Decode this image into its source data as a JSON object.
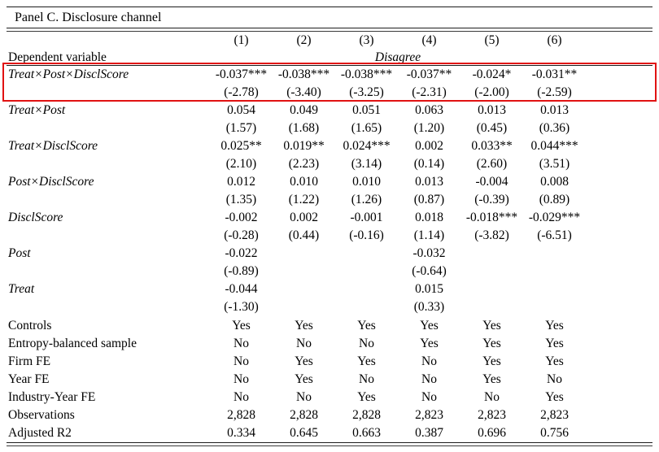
{
  "panel_title": "Panel C. Disclosure channel",
  "columns": [
    "(1)",
    "(2)",
    "(3)",
    "(4)",
    "(5)",
    "(6)"
  ],
  "dependent_variable": {
    "label": "Dependent variable",
    "value": "Disagree"
  },
  "highlight_color": "#e11212",
  "chart_data": {
    "type": "table",
    "title": "Panel C. Disclosure channel",
    "columns": [
      "(1)",
      "(2)",
      "(3)",
      "(4)",
      "(5)",
      "(6)"
    ],
    "dependent_variable": "Disagree"
  },
  "coefficient_rows": [
    {
      "label": "Treat×Post×DisclScore",
      "highlighted": true,
      "estimates": [
        "-0.037***",
        "-0.038***",
        "-0.038***",
        "-0.037**",
        "-0.024*",
        "-0.031**"
      ],
      "t_stats": [
        "(-2.78)",
        "(-3.40)",
        "(-3.25)",
        "(-2.31)",
        "(-2.00)",
        "(-2.59)"
      ]
    },
    {
      "label": "Treat×Post",
      "highlighted": false,
      "estimates": [
        "0.054",
        "0.049",
        "0.051",
        "0.063",
        "0.013",
        "0.013"
      ],
      "t_stats": [
        "(1.57)",
        "(1.68)",
        "(1.65)",
        "(1.20)",
        "(0.45)",
        "(0.36)"
      ]
    },
    {
      "label": "Treat×DisclScore",
      "highlighted": false,
      "estimates": [
        "0.025**",
        "0.019**",
        "0.024***",
        "0.002",
        "0.033**",
        "0.044***"
      ],
      "t_stats": [
        "(2.10)",
        "(2.23)",
        "(3.14)",
        "(0.14)",
        "(2.60)",
        "(3.51)"
      ]
    },
    {
      "label": "Post×DisclScore",
      "highlighted": false,
      "estimates": [
        "0.012",
        "0.010",
        "0.010",
        "0.013",
        "-0.004",
        "0.008"
      ],
      "t_stats": [
        "(1.35)",
        "(1.22)",
        "(1.26)",
        "(0.87)",
        "(-0.39)",
        "(0.89)"
      ]
    },
    {
      "label": "DisclScore",
      "highlighted": false,
      "estimates": [
        "-0.002",
        "0.002",
        "-0.001",
        "0.018",
        "-0.018***",
        "-0.029***"
      ],
      "t_stats": [
        "(-0.28)",
        "(0.44)",
        "(-0.16)",
        "(1.14)",
        "(-3.82)",
        "(-6.51)"
      ]
    },
    {
      "label": "Post",
      "highlighted": false,
      "estimates": [
        "-0.022",
        "",
        "",
        "-0.032",
        "",
        ""
      ],
      "t_stats": [
        "(-0.89)",
        "",
        "",
        "(-0.64)",
        "",
        ""
      ]
    },
    {
      "label": "Treat",
      "highlighted": false,
      "estimates": [
        "-0.044",
        "",
        "",
        "0.015",
        "",
        ""
      ],
      "t_stats": [
        "(-1.30)",
        "",
        "",
        "(0.33)",
        "",
        ""
      ]
    }
  ],
  "info_rows": [
    {
      "label": "Controls",
      "values": [
        "Yes",
        "Yes",
        "Yes",
        "Yes",
        "Yes",
        "Yes"
      ]
    },
    {
      "label": "Entropy-balanced sample",
      "values": [
        "No",
        "No",
        "No",
        "Yes",
        "Yes",
        "Yes"
      ]
    },
    {
      "label": "Firm FE",
      "values": [
        "No",
        "Yes",
        "Yes",
        "No",
        "Yes",
        "Yes"
      ]
    },
    {
      "label": "Year FE",
      "values": [
        "No",
        "Yes",
        "No",
        "No",
        "Yes",
        "No"
      ]
    },
    {
      "label": "Industry-Year FE",
      "values": [
        "No",
        "No",
        "Yes",
        "No",
        "No",
        "Yes"
      ]
    },
    {
      "label": "Observations",
      "values": [
        "2,828",
        "2,828",
        "2,828",
        "2,823",
        "2,823",
        "2,823"
      ]
    },
    {
      "label": "Adjusted R2",
      "values": [
        "0.334",
        "0.645",
        "0.663",
        "0.387",
        "0.696",
        "0.756"
      ]
    }
  ]
}
